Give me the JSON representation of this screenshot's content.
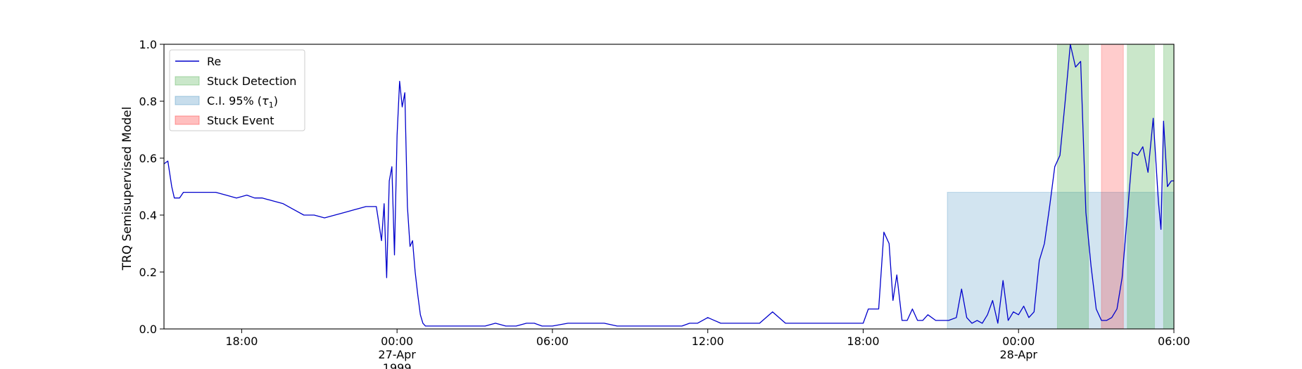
{
  "chart_data": {
    "type": "line",
    "ylabel": "TRQ Semisupervised Model",
    "xlabel": "",
    "ylim": [
      0,
      1
    ],
    "xlim": [
      "1999-04-26 15:00",
      "1999-04-28 06:00"
    ],
    "grid": false,
    "legend_position": "top-left",
    "x_ticks": [
      {
        "label": "18:00",
        "hour": 3
      },
      {
        "label": "00:00",
        "sub": "27-Apr",
        "sub2": "1999",
        "hour": 9
      },
      {
        "label": "06:00",
        "hour": 15
      },
      {
        "label": "12:00",
        "hour": 21
      },
      {
        "label": "18:00",
        "hour": 27
      },
      {
        "label": "00:00",
        "sub": "28-Apr",
        "hour": 33
      },
      {
        "label": "06:00",
        "hour": 39
      }
    ],
    "y_ticks": [
      "0.0",
      "0.2",
      "0.4",
      "0.6",
      "0.8",
      "1.0"
    ],
    "legend": [
      {
        "label": "Re",
        "kind": "line",
        "color": "#0000cc"
      },
      {
        "label": "Stuck Detection",
        "kind": "patch",
        "color": "#2ca02c"
      },
      {
        "label": "C.I. 95% (τ1)",
        "kind": "patch",
        "color": "#1f77b4"
      },
      {
        "label": "Stuck Event",
        "kind": "patch",
        "color": "#ff0000"
      }
    ],
    "ci_band": {
      "x_start_hour": 30.25,
      "x_end_hour": 39,
      "y_top": 0.48,
      "color": "#1f77b4"
    },
    "stuck_detection": [
      {
        "x_start_hour": 34.5,
        "x_end_hour": 35.7
      },
      {
        "x_start_hour": 37.2,
        "x_end_hour": 38.25
      },
      {
        "x_start_hour": 38.6,
        "x_end_hour": 39.0
      }
    ],
    "stuck_event": [
      {
        "x_start_hour": 36.2,
        "x_end_hour": 37.05
      }
    ],
    "series": [
      {
        "name": "Re",
        "color": "#0000cc",
        "x_hours": [
          0,
          0.15,
          0.3,
          0.4,
          0.6,
          0.75,
          1,
          1.3,
          1.6,
          2,
          2.4,
          2.8,
          3.2,
          3.5,
          3.8,
          4.2,
          4.6,
          5,
          5.4,
          5.8,
          6.2,
          6.6,
          7,
          7.4,
          7.8,
          8.2,
          8.4,
          8.5,
          8.6,
          8.7,
          8.8,
          8.9,
          9.0,
          9.1,
          9.2,
          9.3,
          9.4,
          9.5,
          9.6,
          9.7,
          9.8,
          9.9,
          10.0,
          10.1,
          10.2,
          10.3,
          10.4,
          10.6,
          10.8,
          11,
          11.3,
          11.6,
          12,
          12.4,
          12.8,
          13.2,
          13.6,
          14,
          14.3,
          14.6,
          15,
          15.6,
          16.2,
          17,
          17.5,
          18,
          18.5,
          19,
          19.5,
          20,
          20.3,
          20.6,
          21,
          21.5,
          22,
          22.5,
          23,
          23.5,
          24,
          24.5,
          25,
          25.5,
          26,
          26.5,
          27,
          27.2,
          27.4,
          27.6,
          27.8,
          28,
          28.15,
          28.3,
          28.5,
          28.7,
          28.9,
          29.1,
          29.3,
          29.5,
          29.8,
          30,
          30.3,
          30.6,
          30.8,
          31,
          31.2,
          31.4,
          31.6,
          31.8,
          32,
          32.2,
          32.4,
          32.6,
          32.8,
          33,
          33.2,
          33.4,
          33.6,
          33.8,
          34,
          34.2,
          34.4,
          34.6,
          34.8,
          35,
          35.2,
          35.4,
          35.6,
          35.8,
          36,
          36.2,
          36.4,
          36.6,
          36.8,
          37,
          37.2,
          37.4,
          37.6,
          37.8,
          38,
          38.2,
          38.4,
          38.5,
          38.6,
          38.75,
          38.9,
          39
        ],
        "values": [
          0.58,
          0.59,
          0.5,
          0.46,
          0.46,
          0.48,
          0.48,
          0.48,
          0.48,
          0.48,
          0.47,
          0.46,
          0.47,
          0.46,
          0.46,
          0.45,
          0.44,
          0.42,
          0.4,
          0.4,
          0.39,
          0.4,
          0.41,
          0.42,
          0.43,
          0.43,
          0.31,
          0.44,
          0.18,
          0.52,
          0.57,
          0.26,
          0.68,
          0.87,
          0.78,
          0.83,
          0.43,
          0.29,
          0.31,
          0.2,
          0.12,
          0.05,
          0.02,
          0.01,
          0.01,
          0.01,
          0.01,
          0.01,
          0.01,
          0.01,
          0.01,
          0.01,
          0.01,
          0.01,
          0.02,
          0.01,
          0.01,
          0.02,
          0.02,
          0.01,
          0.01,
          0.02,
          0.02,
          0.02,
          0.01,
          0.01,
          0.01,
          0.01,
          0.01,
          0.01,
          0.02,
          0.02,
          0.04,
          0.02,
          0.02,
          0.02,
          0.02,
          0.06,
          0.02,
          0.02,
          0.02,
          0.02,
          0.02,
          0.02,
          0.02,
          0.07,
          0.07,
          0.07,
          0.34,
          0.3,
          0.1,
          0.19,
          0.03,
          0.03,
          0.07,
          0.03,
          0.03,
          0.05,
          0.03,
          0.03,
          0.03,
          0.04,
          0.14,
          0.04,
          0.02,
          0.03,
          0.02,
          0.05,
          0.1,
          0.02,
          0.17,
          0.03,
          0.06,
          0.05,
          0.08,
          0.04,
          0.06,
          0.24,
          0.3,
          0.43,
          0.57,
          0.61,
          0.8,
          1.0,
          0.92,
          0.94,
          0.41,
          0.22,
          0.07,
          0.03,
          0.03,
          0.04,
          0.07,
          0.18,
          0.4,
          0.62,
          0.61,
          0.64,
          0.55,
          0.74,
          0.45,
          0.35,
          0.73,
          0.5,
          0.52,
          0.52
        ]
      }
    ]
  }
}
